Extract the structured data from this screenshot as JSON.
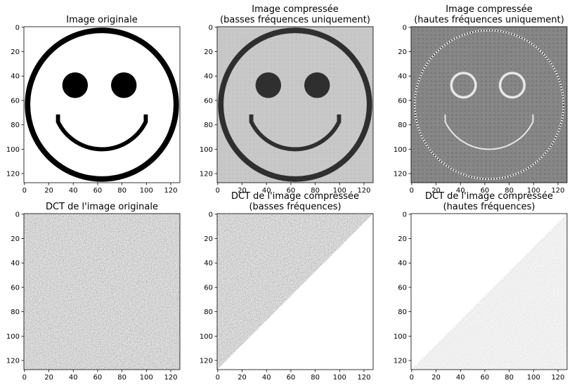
{
  "chart_data": [
    {
      "type": "heatmap",
      "id": "orig",
      "title": [
        "Image originale"
      ],
      "xlim": [
        0,
        128
      ],
      "ylim": [
        128,
        0
      ],
      "xticks": [
        0,
        20,
        40,
        60,
        80,
        100,
        120
      ],
      "yticks": [
        0,
        20,
        40,
        60,
        80,
        100,
        120
      ],
      "colormap": "gray",
      "content": "smiley-binary"
    },
    {
      "type": "heatmap",
      "id": "low",
      "title": [
        "Image compressée",
        "(basses fréquences uniquement)"
      ],
      "xlim": [
        0,
        128
      ],
      "ylim": [
        128,
        0
      ],
      "xticks": [
        0,
        20,
        40,
        60,
        80,
        100,
        120
      ],
      "yticks": [
        0,
        20,
        40,
        60,
        80,
        100,
        120
      ],
      "colormap": "gray",
      "content": "smiley-lowpass"
    },
    {
      "type": "heatmap",
      "id": "high",
      "title": [
        "Image compressée",
        "(hautes fréquences uniquement)"
      ],
      "xlim": [
        0,
        128
      ],
      "ylim": [
        128,
        0
      ],
      "xticks": [
        0,
        20,
        40,
        60,
        80,
        100,
        120
      ],
      "yticks": [
        0,
        20,
        40,
        60,
        80,
        100,
        120
      ],
      "colormap": "gray",
      "content": "smiley-highpass"
    },
    {
      "type": "heatmap",
      "id": "dct",
      "title": [
        "DCT de l'image originale"
      ],
      "xlim": [
        0,
        128
      ],
      "ylim": [
        128,
        0
      ],
      "xticks": [
        0,
        20,
        40,
        60,
        80,
        100,
        120
      ],
      "yticks": [
        0,
        20,
        40,
        60,
        80,
        100,
        120
      ],
      "colormap": "gray",
      "content": "dct-full"
    },
    {
      "type": "heatmap",
      "id": "dctlow",
      "title": [
        "DCT de l'image compressée",
        "(basses fréquences)"
      ],
      "xlim": [
        0,
        128
      ],
      "ylim": [
        128,
        0
      ],
      "xticks": [
        0,
        20,
        40,
        60,
        80,
        100,
        120
      ],
      "yticks": [
        0,
        20,
        40,
        60,
        80,
        100,
        120
      ],
      "colormap": "gray",
      "content": "dct-upper-left-triangle"
    },
    {
      "type": "heatmap",
      "id": "dcthigh",
      "title": [
        "DCT de l'image compressée",
        "(hautes fréquences)"
      ],
      "xlim": [
        0,
        128
      ],
      "ylim": [
        128,
        0
      ],
      "xticks": [
        0,
        20,
        40,
        60,
        80,
        100,
        120
      ],
      "yticks": [
        0,
        20,
        40,
        60,
        80,
        100,
        120
      ],
      "colormap": "gray",
      "content": "dct-lower-right-triangle"
    }
  ]
}
